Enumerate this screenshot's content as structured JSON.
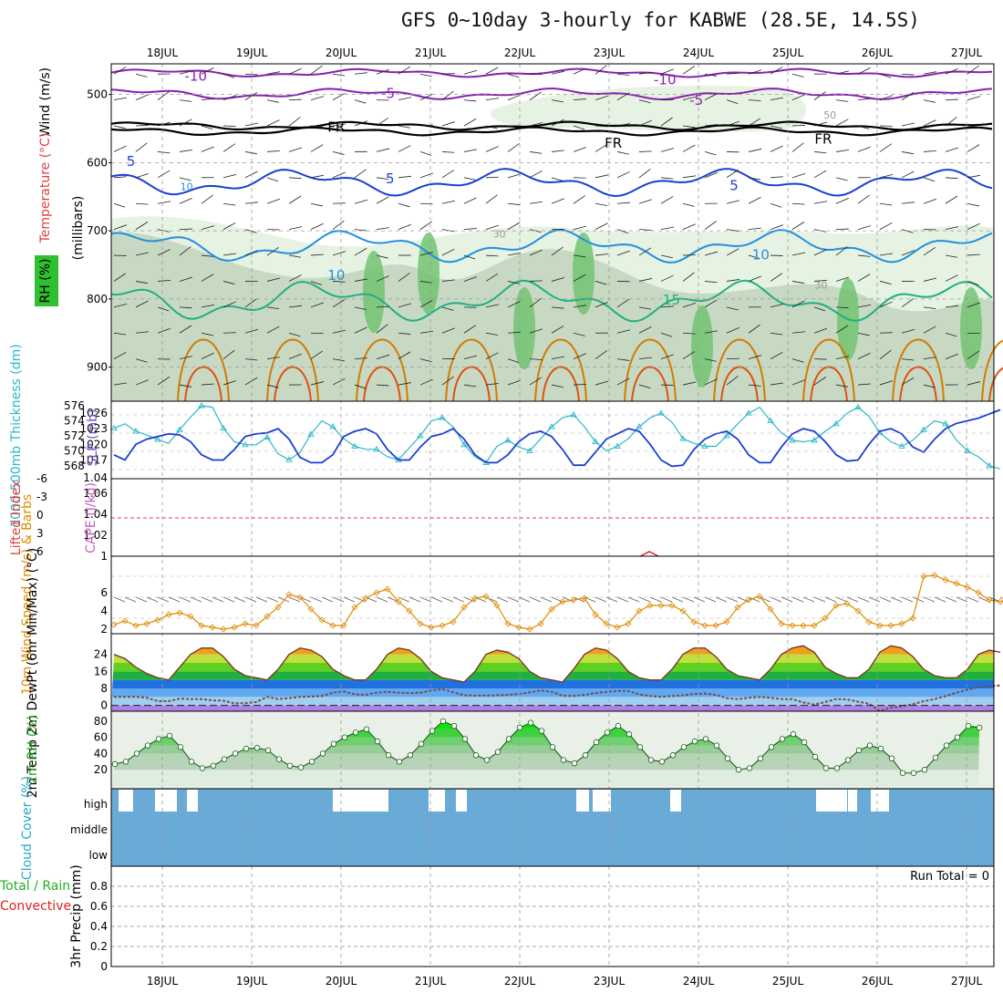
{
  "header": {
    "title": "GFS 0~10day 3-hourly for KABWE (28.5E, 14.5S)"
  },
  "colors": {
    "rh": "#2fbf2f",
    "temp_warm": "#d47a00",
    "temp_cold": "#1a3fd0",
    "freeze": "#000000",
    "upper_cold": "#8a1fb0",
    "slp": "#1a3fd0",
    "thickness": "#28b8c8",
    "wind10m": "#e08a00",
    "cloud": "#6aaad6"
  },
  "chart_data": [
    {
      "panel": "upper-air",
      "type": "contour",
      "dates": [
        "18JUL",
        "19JUL",
        "20JUL",
        "21JUL",
        "22JUL",
        "23JUL",
        "24JUL",
        "25JUL",
        "26JUL",
        "27JUL"
      ],
      "ylabel": "(millibars)",
      "label_wind": "Wind (m/s)",
      "label_temp": "Temperature (°C)",
      "label_rh": "RH (%)",
      "yticks": [
        "500",
        "600",
        "700",
        "800",
        "900"
      ],
      "contour_labels": [
        {
          "text": "-10",
          "day": 0.25,
          "p": 480
        },
        {
          "text": "-10",
          "day": 5.5,
          "p": 485
        },
        {
          "text": "-5",
          "day": 2.45,
          "p": 505
        },
        {
          "text": "-5",
          "day": 5.9,
          "p": 515
        },
        {
          "text": "FR",
          "day": 1.85,
          "p": 555
        },
        {
          "text": "FR",
          "day": 4.95,
          "p": 578
        },
        {
          "text": "FR",
          "day": 7.3,
          "p": 572
        },
        {
          "text": "5",
          "day": -0.4,
          "p": 605
        },
        {
          "text": "5",
          "day": 2.5,
          "p": 630
        },
        {
          "text": "5",
          "day": 6.35,
          "p": 640
        },
        {
          "text": "10",
          "day": 1.85,
          "p": 772
        },
        {
          "text": "10",
          "day": 6.6,
          "p": 742
        },
        {
          "text": "15",
          "day": 5.6,
          "p": 808
        },
        {
          "text": "10",
          "day": 0.2,
          "p": 640
        },
        {
          "text": "30",
          "day": 3.7,
          "p": 710
        },
        {
          "text": "30",
          "day": 7.3,
          "p": 785
        },
        {
          "text": "50",
          "day": 7.4,
          "p": 535
        }
      ]
    },
    {
      "panel": "slp-thickness",
      "type": "line",
      "left_label": "1000-500mb Thickness (dm)",
      "right_label": "SLP (mb)",
      "thickness_ticks": [
        "568",
        "570",
        "572",
        "574",
        "576"
      ],
      "slp_ticks": [
        "1017",
        "1020",
        "1023",
        "1026"
      ],
      "slp_extra_tick": "1.04",
      "thickness": [
        573.0,
        573.6,
        572.6,
        572.1,
        571.5,
        571.0,
        572.8,
        574.5,
        576.0,
        575.8,
        573.0,
        571.2,
        570.8,
        570.8,
        571.8,
        569.6,
        568.8,
        569.8,
        572.2,
        574.0,
        573.2,
        571.6,
        570.6,
        570.2,
        570.2,
        569.2,
        568.8,
        570.4,
        572.0,
        574.0,
        574.4,
        573.2,
        570.8,
        569.2,
        568.4,
        570.6,
        571.4,
        570.5,
        570.0,
        571.6,
        573.2,
        574.4,
        574.8,
        573.2,
        571.2,
        570.0,
        570.6,
        571.6,
        573.2,
        574.4,
        575.0,
        573.8,
        571.6,
        571.0,
        570.6,
        570.6,
        572.0,
        573.6,
        575.0,
        575.8,
        574.0,
        572.4,
        571.4,
        571.2,
        571.4,
        572.6,
        573.6,
        575.0,
        575.8,
        574.6,
        572.4,
        571.2,
        570.6,
        571.4,
        572.8,
        574.0,
        573.6,
        571.4,
        570.0,
        569.2,
        568.0,
        567.6
      ],
      "slp": [
        1018.0,
        1017.0,
        1020.0,
        1021.0,
        1021.5,
        1022.0,
        1021.8,
        1020.5,
        1018.0,
        1017.0,
        1017.0,
        1019.0,
        1021.5,
        1022.0,
        1022.2,
        1023.0,
        1021.0,
        1017.5,
        1016.5,
        1016.5,
        1018.0,
        1021.5,
        1022.5,
        1023.0,
        1022.0,
        1019.0,
        1017.0,
        1017.0,
        1019.5,
        1021.5,
        1022.0,
        1023.0,
        1021.0,
        1018.0,
        1016.5,
        1016.5,
        1018.0,
        1020.5,
        1022.0,
        1022.5,
        1021.5,
        1019.0,
        1016.0,
        1016.0,
        1018.5,
        1021.0,
        1022.0,
        1023.0,
        1022.5,
        1020.0,
        1017.0,
        1015.8,
        1016.0,
        1019.0,
        1021.0,
        1022.0,
        1022.5,
        1021.0,
        1018.0,
        1016.5,
        1016.5,
        1019.5,
        1022.0,
        1023.0,
        1022.5,
        1020.5,
        1018.0,
        1016.8,
        1017.0,
        1020.0,
        1022.5,
        1023.0,
        1022.0,
        1019.5,
        1018.5,
        1021.0,
        1023.0,
        1024.0,
        1024.5,
        1025.0,
        1025.8,
        1026.6
      ]
    },
    {
      "panel": "lifted-index-cape",
      "type": "line",
      "left_label": "Lifted Index",
      "right_label": "CAPE (J/kg)",
      "li_ticks": [
        "-6",
        "-3",
        "0",
        "3",
        "6"
      ],
      "cape_ticks": [
        "1",
        "1.02",
        "1.04",
        "1.06"
      ],
      "cape_spike_day": 5.45
    },
    {
      "panel": "wind10m",
      "type": "line",
      "ylabel": "10m Wind Speed (m/s) & Barbs",
      "yticks": [
        "2",
        "4",
        "6"
      ],
      "values": [
        2.5,
        2.9,
        2.4,
        2.6,
        3.0,
        3.6,
        3.8,
        3.4,
        2.4,
        2.2,
        2.0,
        2.2,
        2.6,
        2.4,
        3.4,
        4.4,
        5.8,
        5.5,
        4.2,
        3.0,
        2.4,
        2.4,
        4.4,
        5.4,
        6.0,
        6.4,
        5.0,
        4.0,
        2.6,
        2.2,
        2.4,
        2.8,
        4.4,
        5.4,
        5.6,
        4.6,
        2.6,
        2.2,
        2.0,
        2.6,
        4.2,
        5.0,
        5.2,
        5.4,
        3.6,
        2.6,
        2.2,
        2.6,
        4.0,
        4.6,
        4.6,
        4.6,
        4.0,
        2.8,
        2.4,
        2.4,
        2.8,
        4.4,
        5.2,
        5.6,
        4.2,
        2.6,
        2.4,
        2.4,
        2.4,
        3.2,
        4.6,
        4.8,
        4.0,
        2.8,
        2.4,
        2.4,
        2.6,
        3.2,
        7.8,
        7.9,
        7.4,
        7.0,
        6.6,
        6.0,
        5.2,
        5.0,
        5.4,
        6.6
      ]
    },
    {
      "panel": "temperature",
      "type": "area",
      "ylabel": "2m Temp 2m DewPt (6hr Min/Max) (°C)",
      "yticks": [
        "0",
        "8",
        "16",
        "24"
      ],
      "temp": [
        24,
        22,
        18,
        15,
        13,
        12,
        18,
        24,
        27,
        27,
        23,
        17,
        14,
        13,
        12,
        17,
        24,
        27,
        26,
        23,
        17,
        14,
        12,
        12,
        17,
        24,
        27,
        26,
        22,
        16,
        13,
        12,
        11,
        16,
        24,
        26,
        25,
        22,
        16,
        13,
        12,
        11,
        17,
        24,
        27,
        26,
        22,
        16,
        13,
        12,
        12,
        17,
        24,
        27,
        27,
        23,
        17,
        14,
        13,
        12,
        17,
        24,
        27,
        28,
        25,
        18,
        15,
        13,
        13,
        17,
        25,
        28,
        27,
        23,
        17,
        14,
        13,
        13,
        17,
        24,
        26,
        25
      ],
      "dewpoint": [
        4.0,
        4.0,
        4.0,
        3.6,
        2.0,
        2.0,
        3.2,
        3.0,
        3.0,
        2.4,
        2.2,
        1.0,
        1.0,
        1.6,
        4.0,
        3.0,
        3.4,
        4.0,
        4.2,
        4.4,
        6.0,
        6.6,
        5.2,
        5.0,
        6.0,
        6.4,
        6.0,
        5.8,
        6.0,
        7.0,
        7.6,
        6.2,
        4.8,
        4.6,
        4.6,
        4.8,
        5.0,
        5.4,
        6.2,
        7.0,
        6.4,
        4.6,
        4.4,
        5.0,
        5.8,
        6.4,
        6.8,
        6.8,
        5.2,
        4.4,
        4.0,
        4.4,
        4.8,
        5.4,
        5.6,
        5.0,
        3.4,
        3.0,
        3.6,
        4.0,
        3.6,
        3.0,
        3.0,
        1.4,
        0.4,
        1.6,
        3.0,
        2.8,
        1.8,
        0.8,
        -2.6,
        -1.0,
        -0.4,
        0.6,
        2.0,
        3.0,
        4.4,
        6.0,
        7.4,
        8.6,
        9.0,
        9.4
      ]
    },
    {
      "panel": "rh2m",
      "type": "area",
      "ylabel": "2m RH (%)",
      "yticks": [
        "20",
        "40",
        "60",
        "80"
      ],
      "values": [
        27,
        30,
        40,
        50,
        58,
        62,
        48,
        30,
        22,
        25,
        33,
        40,
        46,
        47,
        44,
        33,
        25,
        23,
        30,
        40,
        52,
        60,
        66,
        70,
        55,
        38,
        30,
        38,
        52,
        68,
        80,
        74,
        58,
        38,
        32,
        42,
        58,
        72,
        78,
        68,
        48,
        32,
        28,
        38,
        54,
        66,
        74,
        64,
        48,
        32,
        30,
        38,
        48,
        55,
        58,
        50,
        34,
        20,
        22,
        34,
        48,
        58,
        64,
        54,
        36,
        22,
        22,
        32,
        44,
        50,
        46,
        34,
        16,
        16,
        20,
        35,
        50,
        60,
        74,
        72
      ],
      "ylim": [
        0,
        90
      ]
    },
    {
      "panel": "cloud-cover",
      "type": "heatmap",
      "ylabel": "Cloud Cover (%)",
      "levels": [
        "high",
        "middle",
        "low"
      ]
    },
    {
      "panel": "precip",
      "type": "bar",
      "ylabel": "3hr Precip (mm)",
      "left_label_a": "Total / Rain",
      "left_label_b": "Convective",
      "yticks": [
        "0",
        "0.2",
        "0.4",
        "0.6",
        "0.8"
      ],
      "run_total": "Run Total = 0",
      "ylim": [
        0,
        1
      ]
    }
  ]
}
